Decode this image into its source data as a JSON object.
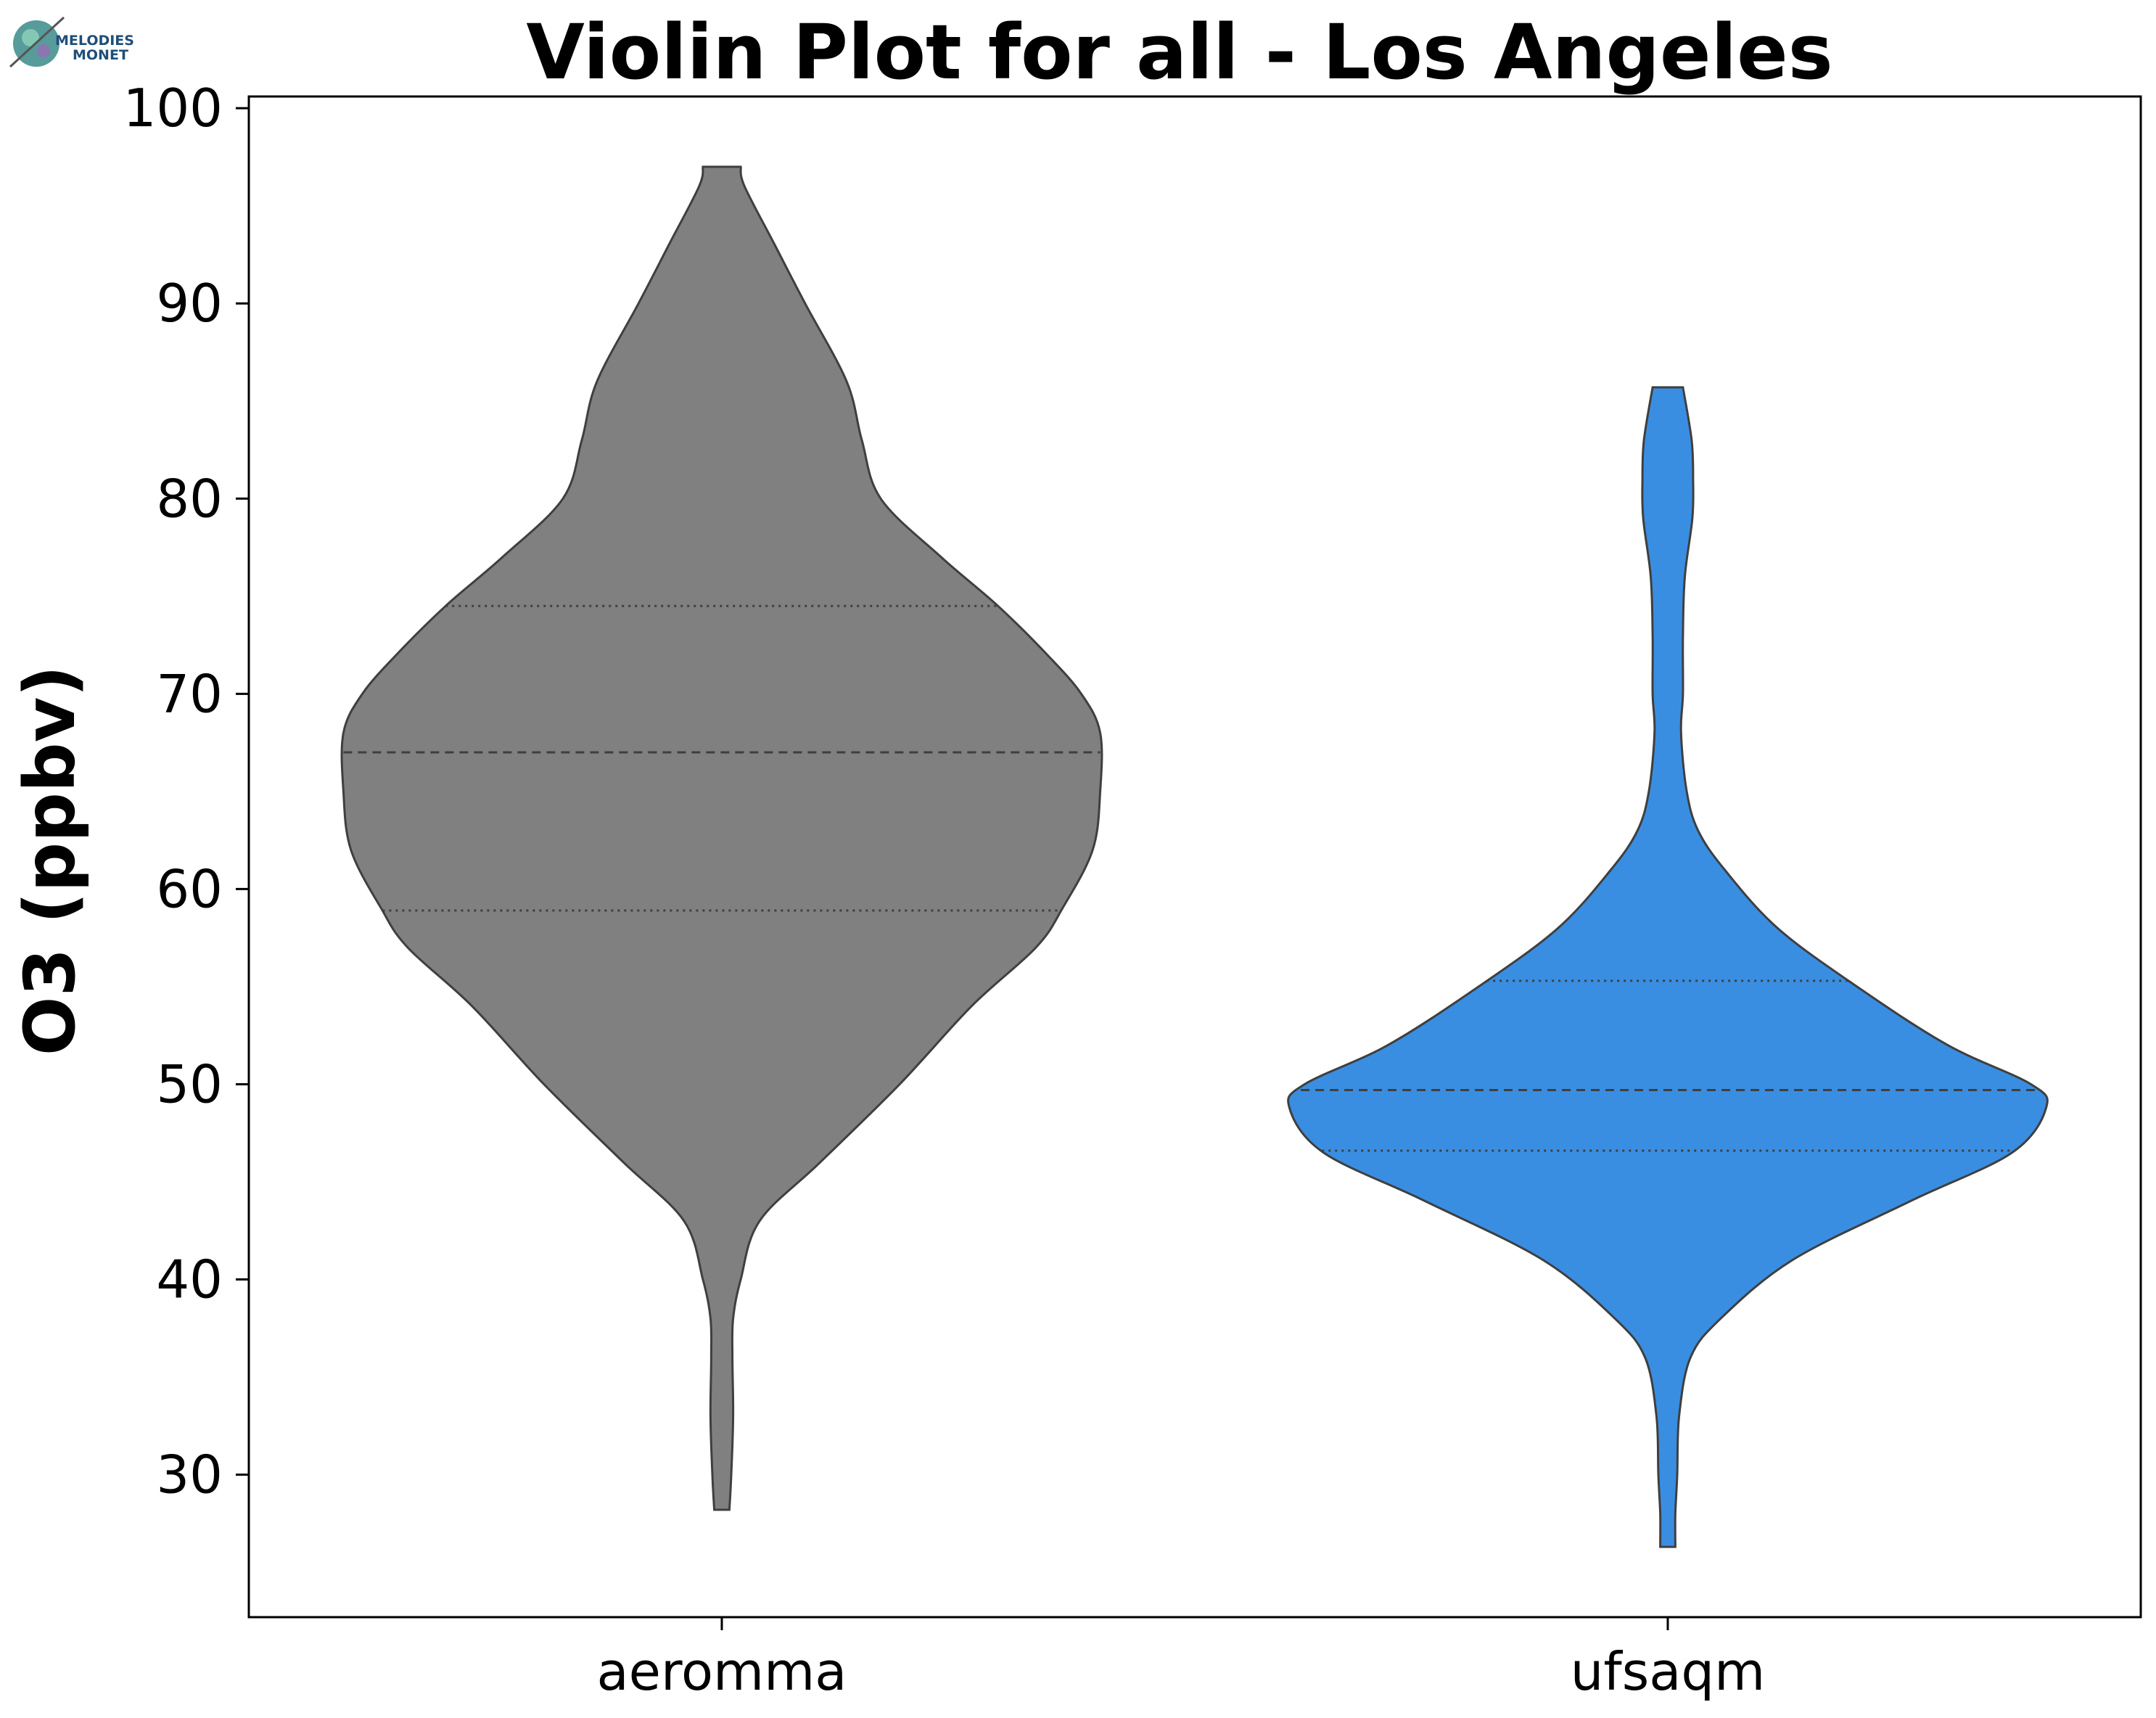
{
  "logo": {
    "line1": "MELODIES",
    "line2": "MONET"
  },
  "chart_data": {
    "type": "violin",
    "title": "Violin Plot for all - Los Angeles",
    "xlabel": "",
    "ylabel": "O3 (ppbv)",
    "ylim": [
      22.7,
      100.6
    ],
    "yticks": [
      30,
      40,
      50,
      60,
      70,
      80,
      90,
      100
    ],
    "categories": [
      "aeromma",
      "ufsaqm"
    ],
    "grid": false,
    "legend": "none",
    "series": [
      {
        "category": "aeromma",
        "color": "#808080",
        "min": 28.2,
        "max": 97.0,
        "q1": 58.9,
        "median": 67.0,
        "q3": 74.5,
        "density": [
          [
            28.2,
            0.02
          ],
          [
            30,
            0.025
          ],
          [
            33,
            0.03
          ],
          [
            36,
            0.028
          ],
          [
            38,
            0.03
          ],
          [
            40,
            0.05
          ],
          [
            43,
            0.1
          ],
          [
            46,
            0.26
          ],
          [
            50,
            0.47
          ],
          [
            54,
            0.66
          ],
          [
            57,
            0.83
          ],
          [
            59,
            0.9
          ],
          [
            62,
            0.98
          ],
          [
            65,
            1.0
          ],
          [
            68,
            1.0
          ],
          [
            70,
            0.95
          ],
          [
            72,
            0.86
          ],
          [
            74.5,
            0.73
          ],
          [
            77,
            0.58
          ],
          [
            80,
            0.42
          ],
          [
            83,
            0.37
          ],
          [
            86,
            0.33
          ],
          [
            90,
            0.22
          ],
          [
            93,
            0.14
          ],
          [
            96,
            0.06
          ],
          [
            97,
            0.05
          ]
        ]
      },
      {
        "category": "ufsaqm",
        "color": "#3a8ee1",
        "min": 26.3,
        "max": 85.7,
        "q1": 46.6,
        "median": 49.7,
        "q3": 55.3,
        "density": [
          [
            26.3,
            0.02
          ],
          [
            28,
            0.02
          ],
          [
            30,
            0.025
          ],
          [
            33,
            0.03
          ],
          [
            36,
            0.06
          ],
          [
            38,
            0.14
          ],
          [
            41,
            0.33
          ],
          [
            44,
            0.64
          ],
          [
            46.5,
            0.91
          ],
          [
            48.8,
            1.0
          ],
          [
            50,
            0.96
          ],
          [
            52,
            0.74
          ],
          [
            55,
            0.5
          ],
          [
            58,
            0.29
          ],
          [
            61,
            0.15
          ],
          [
            63,
            0.08
          ],
          [
            65,
            0.05
          ],
          [
            68,
            0.035
          ],
          [
            70,
            0.04
          ],
          [
            73,
            0.04
          ],
          [
            76,
            0.045
          ],
          [
            79,
            0.065
          ],
          [
            81,
            0.067
          ],
          [
            83,
            0.063
          ],
          [
            85.7,
            0.04
          ]
        ]
      }
    ]
  }
}
